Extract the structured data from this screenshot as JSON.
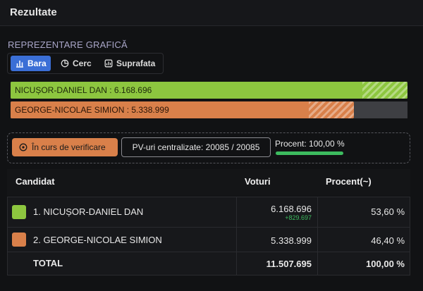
{
  "header": {
    "title": "Rezultate"
  },
  "section_title": "REPREZENTARE GRAFICĂ",
  "tabs": [
    "Bara",
    "Cerc",
    "Suprafata"
  ],
  "bars": [
    {
      "label": "NICUȘOR-DANIEL DAN : 6.168.696",
      "value": 6168696,
      "color": "#8dc63f"
    },
    {
      "label": "GEORGE-NICOLAE SIMION : 5.338.999",
      "value": 5338999,
      "color": "#d9804a"
    }
  ],
  "status": {
    "button": "În curs de verificare",
    "pv": "PV-uri centralizate: 20085 / 20085",
    "percent": "Procent: 100,00 %"
  },
  "table": {
    "columns": [
      "Candidat",
      "Voturi",
      "Procent(~)"
    ],
    "rows": [
      {
        "name": "1. NICUȘOR-DANIEL DAN",
        "votes": "6.168.696",
        "delta": "+829.697",
        "percent": "53,60 %",
        "color": "#8dc63f"
      },
      {
        "name": "2. GEORGE-NICOLAE SIMION",
        "votes": "5.338.999",
        "percent": "46,40 %",
        "color": "#d9804a"
      }
    ],
    "total": {
      "name": "TOTAL",
      "votes": "11.507.695",
      "percent": "100,00 %"
    }
  }
}
